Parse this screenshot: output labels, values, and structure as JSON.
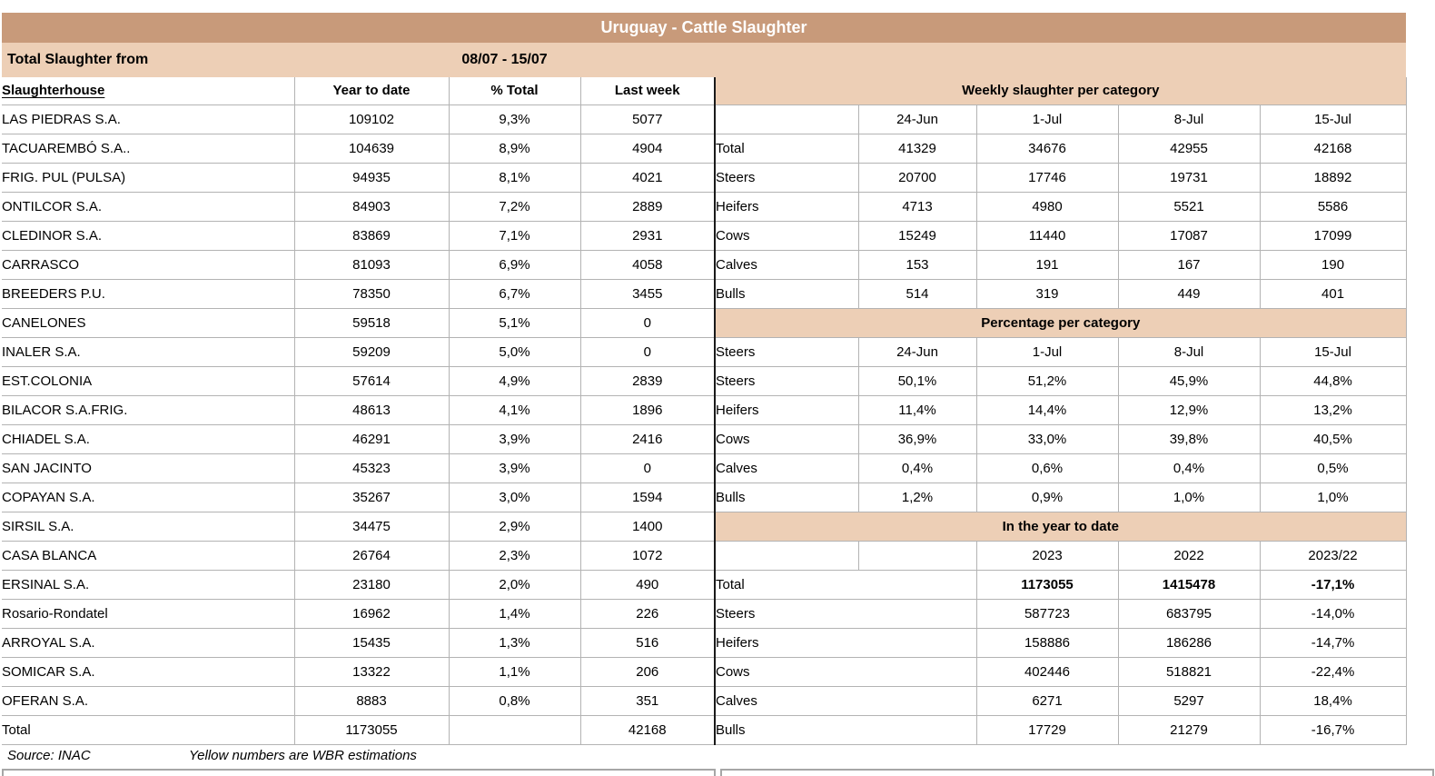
{
  "title": "Uruguay - Cattle Slaughter",
  "subheader": {
    "label": "Total Slaughter from",
    "period": "08/07 - 15/07"
  },
  "left_table": {
    "headers": [
      "Slaughterhouse",
      "Year to date",
      "% Total",
      "Last week"
    ],
    "rows": [
      [
        "LAS PIEDRAS S.A.",
        "109102",
        "9,3%",
        "5077"
      ],
      [
        "TACUAREMBÓ S.A..",
        "104639",
        "8,9%",
        "4904"
      ],
      [
        "FRIG. PUL (PULSA)",
        "94935",
        "8,1%",
        "4021"
      ],
      [
        "ONTILCOR S.A.",
        "84903",
        "7,2%",
        "2889"
      ],
      [
        "CLEDINOR S.A.",
        "83869",
        "7,1%",
        "2931"
      ],
      [
        "CARRASCO",
        "81093",
        "6,9%",
        "4058"
      ],
      [
        "BREEDERS P.U.",
        "78350",
        "6,7%",
        "3455"
      ],
      [
        "CANELONES",
        "59518",
        "5,1%",
        "0"
      ],
      [
        "INALER S.A.",
        "59209",
        "5,0%",
        "0"
      ],
      [
        "EST.COLONIA",
        "57614",
        "4,9%",
        "2839"
      ],
      [
        "BILACOR S.A.FRIG.",
        "48613",
        "4,1%",
        "1896"
      ],
      [
        "CHIADEL S.A.",
        "46291",
        "3,9%",
        "2416"
      ],
      [
        "SAN JACINTO",
        "45323",
        "3,9%",
        "0"
      ],
      [
        "COPAYAN S.A.",
        "35267",
        "3,0%",
        "1594"
      ],
      [
        "SIRSIL S.A.",
        "34475",
        "2,9%",
        "1400"
      ],
      [
        "CASA BLANCA",
        "26764",
        "2,3%",
        "1072"
      ],
      [
        "ERSINAL S.A.",
        "23180",
        "2,0%",
        "490"
      ],
      [
        "Rosario-Rondatel",
        "16962",
        "1,4%",
        "226"
      ],
      [
        "ARROYAL S.A.",
        "15435",
        "1,3%",
        "516"
      ],
      [
        "SOMICAR S.A.",
        "13322",
        "1,1%",
        "206"
      ],
      [
        "OFERAN S.A.",
        "8883",
        "0,8%",
        "351"
      ],
      [
        "Total",
        "1173055",
        "",
        "42168"
      ]
    ]
  },
  "right_panel": {
    "weekly": {
      "title": "Weekly slaughter per category",
      "first_header_cell": "",
      "date_headers": [
        "24-Jun",
        "1-Jul",
        "8-Jul",
        "15-Jul"
      ],
      "rows": [
        {
          "label": "Total",
          "values": [
            "41329",
            "34676",
            "42955",
            "42168"
          ]
        },
        {
          "label": "Steers",
          "values": [
            "20700",
            "17746",
            "19731",
            "18892"
          ]
        },
        {
          "label": "Heifers",
          "values": [
            "4713",
            "4980",
            "5521",
            "5586"
          ]
        },
        {
          "label": "Cows",
          "values": [
            "15249",
            "11440",
            "17087",
            "17099"
          ]
        },
        {
          "label": "Calves",
          "values": [
            "153",
            "191",
            "167",
            "190"
          ]
        },
        {
          "label": "Bulls",
          "values": [
            "514",
            "319",
            "449",
            "401"
          ]
        }
      ]
    },
    "percentage": {
      "title": "Percentage per category",
      "first_header_cell": "Steers",
      "date_headers": [
        "24-Jun",
        "1-Jul",
        "8-Jul",
        "15-Jul"
      ],
      "rows": [
        {
          "label": "Steers",
          "values": [
            "50,1%",
            "51,2%",
            "45,9%",
            "44,8%"
          ]
        },
        {
          "label": "Heifers",
          "values": [
            "11,4%",
            "14,4%",
            "12,9%",
            "13,2%"
          ]
        },
        {
          "label": "Cows",
          "values": [
            "36,9%",
            "33,0%",
            "39,8%",
            "40,5%"
          ]
        },
        {
          "label": "Calves",
          "values": [
            "0,4%",
            "0,6%",
            "0,4%",
            "0,5%"
          ]
        },
        {
          "label": "Bulls",
          "values": [
            "1,2%",
            "0,9%",
            "1,0%",
            "1,0%"
          ]
        }
      ]
    },
    "ytd": {
      "title": "In the year to date",
      "year_headers": [
        "2023",
        "2022",
        "2023/22"
      ],
      "rows": [
        {
          "label": "Total",
          "values": [
            "1173055",
            "1415478",
            "-17,1%"
          ],
          "bold": true
        },
        {
          "label": "Steers",
          "values": [
            "587723",
            "683795",
            "-14,0%"
          ],
          "bold": false
        },
        {
          "label": "Heifers",
          "values": [
            "158886",
            "186286",
            "-14,7%"
          ],
          "bold": false
        },
        {
          "label": "Cows",
          "values": [
            "402446",
            "518821",
            "-22,4%"
          ],
          "bold": false
        },
        {
          "label": "Calves",
          "values": [
            "6271",
            "5297",
            "18,4%"
          ],
          "bold": false
        },
        {
          "label": "Bulls",
          "values": [
            "17729",
            "21279",
            "-16,7%"
          ],
          "bold": false
        }
      ]
    }
  },
  "footer": {
    "source": "Source: INAC",
    "note": "Yellow numbers are WBR estimations"
  },
  "colors": {
    "header_dark": "#c89a7a",
    "band_light": "#edcfb6",
    "grid_line": "#b3b3b3",
    "divider": "#1a1a1a",
    "title_text": "#ffffff"
  }
}
